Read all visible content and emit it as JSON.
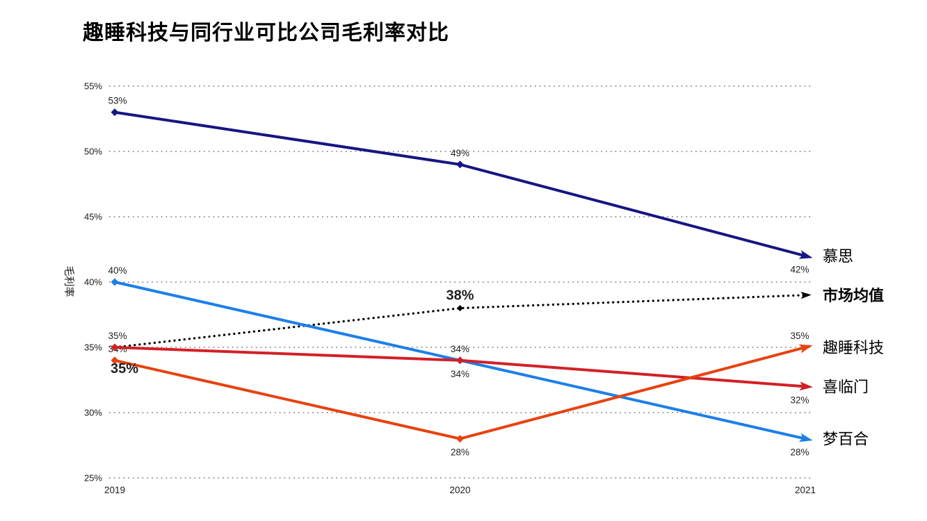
{
  "title": "趣睡科技与同行业可比公司毛利率对比",
  "chart_data": {
    "type": "line",
    "title": "趣睡科技与同行业可比公司毛利率对比",
    "xlabel": "",
    "ylabel": "毛利率",
    "x_categories": [
      "2019",
      "2020",
      "2021"
    ],
    "y_tick_values": [
      55,
      50,
      45,
      40,
      35,
      30,
      25
    ],
    "y_tick_labels": [
      "55%",
      "50%",
      "45%",
      "40%",
      "35%",
      "30%",
      "25%"
    ],
    "ylim": [
      25,
      55
    ],
    "grid": "horizontal-dotted",
    "gridline_color": "#6f6f6f",
    "axis_text_color": "#1a1a1a",
    "legend_position": "right-of-line-end",
    "series": [
      {
        "name": "慕思",
        "color": "#171583",
        "line_style": "solid",
        "values": [
          53,
          49,
          42
        ],
        "legend_bold": false,
        "data_labels": [
          {
            "text": "53%",
            "pos": "above"
          },
          {
            "text": "49%",
            "pos": "above"
          },
          {
            "text": "42%",
            "pos": "below"
          }
        ]
      },
      {
        "name": "市场均值",
        "color": "#000000",
        "line_style": "dotted",
        "values": [
          35,
          38,
          39
        ],
        "legend_bold": true,
        "data_labels": [
          {
            "text": "35%",
            "pos": "below-right",
            "bold": true
          },
          {
            "text": "38%",
            "pos": "above",
            "bold": true
          },
          null
        ]
      },
      {
        "name": "梦百合",
        "color": "#1C7FE8",
        "line_style": "solid",
        "values": [
          40,
          34,
          28
        ],
        "legend_bold": false,
        "data_labels": [
          {
            "text": "40%",
            "pos": "above"
          },
          {
            "text": "34%",
            "pos": "below"
          },
          {
            "text": "28%",
            "pos": "below"
          }
        ]
      },
      {
        "name": "喜临门",
        "color": "#D22027",
        "line_style": "solid",
        "values": [
          35,
          34,
          32
        ],
        "legend_bold": false,
        "data_labels": [
          {
            "text": "35%",
            "pos": "above"
          },
          {
            "text": "34%",
            "pos": "above"
          },
          {
            "text": "32%",
            "pos": "below"
          }
        ]
      },
      {
        "name": "趣睡科技",
        "color": "#E8420E",
        "line_style": "solid",
        "values": [
          34,
          28,
          35
        ],
        "legend_bold": false,
        "data_labels": [
          {
            "text": "34%",
            "pos": "above",
            "layer": "back"
          },
          {
            "text": "28%",
            "pos": "below"
          },
          {
            "text": "35%",
            "pos": "above"
          }
        ]
      }
    ]
  }
}
